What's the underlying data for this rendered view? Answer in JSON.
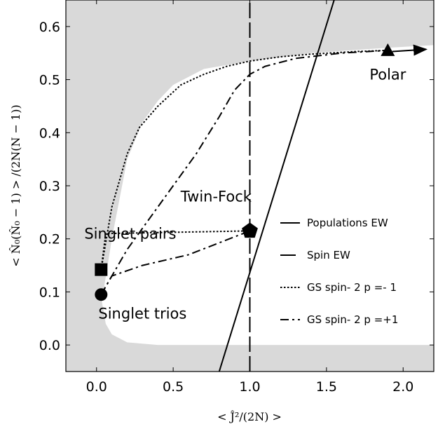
{
  "chart_data": {
    "type": "line",
    "xlabel": "< Ĵ²/(2N) >",
    "ylabel": "< N̂₀(N̂₀ − 1) > /(2N(N − 1))",
    "xlim": [
      -0.2,
      2.2
    ],
    "ylim": [
      -0.05,
      0.65
    ],
    "x_ticks": [
      "0.0",
      "0.5",
      "1.0",
      "1.5",
      "2.0"
    ],
    "x_tick_values": [
      0,
      0.5,
      1.0,
      1.5,
      2.0
    ],
    "y_ticks": [
      "0.0",
      "0.1",
      "0.2",
      "0.3",
      "0.4",
      "0.5",
      "0.6"
    ],
    "y_tick_values": [
      0,
      0.1,
      0.2,
      0.3,
      0.4,
      0.5,
      0.6
    ],
    "grid": false,
    "legend_position": "right",
    "region_fill_color": "#d9d9d9",
    "allowed_region": {
      "upper": [
        [
          0.03,
          0.09
        ],
        [
          0.05,
          0.11
        ],
        [
          0.1,
          0.2
        ],
        [
          0.2,
          0.35
        ],
        [
          0.3,
          0.42
        ],
        [
          0.4,
          0.46
        ],
        [
          0.5,
          0.49
        ],
        [
          0.7,
          0.52
        ],
        [
          1.0,
          0.535
        ],
        [
          1.4,
          0.55
        ],
        [
          1.9,
          0.56
        ],
        [
          2.2,
          0.565
        ]
      ],
      "lower": [
        [
          0.03,
          0.09
        ],
        [
          0.06,
          0.04
        ],
        [
          0.1,
          0.02
        ],
        [
          0.2,
          0.005
        ],
        [
          0.4,
          0.0
        ],
        [
          2.2,
          0.0
        ]
      ]
    },
    "series": [
      {
        "name": "Populations EW",
        "style": "solid",
        "x": [
          0.8,
          1.55
        ],
        "y": [
          -0.05,
          0.65
        ]
      },
      {
        "name": "Spin EW",
        "style": "dashed",
        "x": [
          1.0,
          1.0
        ],
        "y": [
          -0.05,
          0.65
        ]
      },
      {
        "name": "GS spin- 2 p =- 1",
        "style": "dotted",
        "x": [
          0.03,
          0.1,
          0.2,
          0.28,
          0.4,
          0.55,
          0.7,
          0.85,
          1.0,
          1.2,
          1.4,
          1.7,
          1.9
        ],
        "y": [
          0.142,
          0.26,
          0.36,
          0.41,
          0.45,
          0.49,
          0.51,
          0.525,
          0.535,
          0.543,
          0.548,
          0.553,
          0.555
        ],
        "x2": [
          0.03,
          0.06,
          1.0
        ],
        "y2": [
          0.142,
          0.21,
          0.215
        ]
      },
      {
        "name": "GS spin- 2 p =+1",
        "style": "dashdot",
        "x": [
          0.03,
          0.2,
          0.35,
          0.5,
          0.65,
          0.8,
          0.9,
          1.0,
          1.1,
          1.3,
          1.6,
          1.9
        ],
        "y": [
          0.095,
          0.18,
          0.24,
          0.3,
          0.36,
          0.43,
          0.48,
          0.51,
          0.525,
          0.54,
          0.55,
          0.555
        ],
        "x2": [
          0.03,
          0.1,
          0.3,
          0.6,
          1.0
        ],
        "y2": [
          0.095,
          0.13,
          0.15,
          0.17,
          0.215
        ]
      }
    ],
    "markers": [
      {
        "name": "Singlet trios",
        "shape": "circle",
        "x": 0.03,
        "y": 0.095
      },
      {
        "name": "Singlet pairs",
        "shape": "square",
        "x": 0.03,
        "y": 0.142
      },
      {
        "name": "Twin-Fock",
        "shape": "pentagon",
        "x": 1.0,
        "y": 0.215
      },
      {
        "name": "Polar",
        "shape": "triangle",
        "x": 1.9,
        "y": 0.555
      }
    ],
    "annotations": [
      {
        "text": "Polar",
        "x": 1.9,
        "y": 0.5
      },
      {
        "text": "Twin-Fock",
        "x": 0.78,
        "y": 0.27
      },
      {
        "text": "Singlet pairs",
        "x": 0.22,
        "y": 0.2
      },
      {
        "text": "Singlet trios",
        "x": 0.3,
        "y": 0.05
      }
    ],
    "arrow": {
      "from": [
        1.93,
        0.553
      ],
      "to": [
        2.15,
        0.557
      ]
    }
  }
}
